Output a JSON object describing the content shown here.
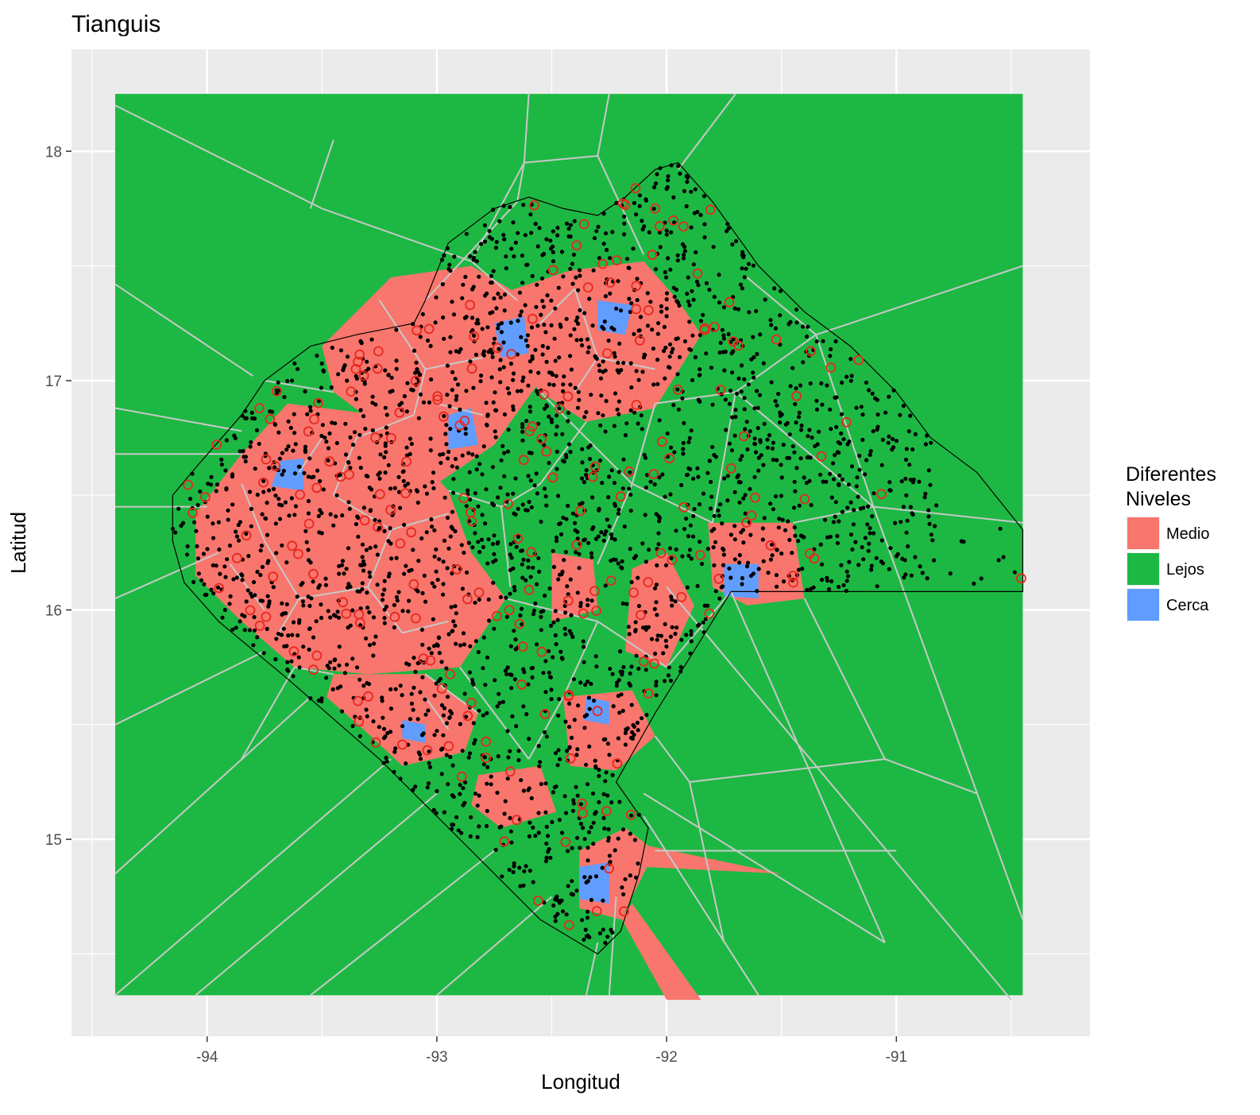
{
  "chart_data": {
    "type": "voronoi-map",
    "title": "Tianguis",
    "xlabel": "Longitud",
    "ylabel": "Latitud",
    "xlim": [
      -94.5,
      -90.2
    ],
    "ylim": [
      14.2,
      18.45
    ],
    "x_ticks": [
      -94,
      -93,
      -92,
      -91
    ],
    "y_ticks": [
      15,
      16,
      17,
      18
    ],
    "fill_extent": {
      "lon": [
        -94.4,
        -90.45
      ],
      "lat": [
        14.32,
        18.25
      ]
    },
    "legend": {
      "title_lines": [
        "Diferentes",
        "Niveles"
      ],
      "placement": "right",
      "entries": [
        {
          "label": "Medio",
          "color": "#F8766D"
        },
        {
          "label": "Lejos",
          "color": "#1DB843"
        },
        {
          "label": "Cerca",
          "color": "#619CFF"
        }
      ]
    },
    "background_color": "#1DB843",
    "edge_color": "#C8C8C8",
    "medio_regions": [
      [
        [
          -93.5,
          17.15
        ],
        [
          -93.2,
          17.45
        ],
        [
          -92.85,
          17.5
        ],
        [
          -92.6,
          17.35
        ],
        [
          -92.55,
          17.0
        ],
        [
          -92.75,
          16.72
        ],
        [
          -93.0,
          16.55
        ],
        [
          -93.25,
          16.8
        ],
        [
          -93.45,
          16.95
        ]
      ],
      [
        [
          -92.72,
          17.38
        ],
        [
          -92.42,
          17.48
        ],
        [
          -92.1,
          17.52
        ],
        [
          -91.95,
          17.35
        ],
        [
          -91.85,
          17.2
        ],
        [
          -92.05,
          16.88
        ],
        [
          -92.35,
          16.82
        ],
        [
          -92.55,
          16.95
        ],
        [
          -92.68,
          17.12
        ]
      ],
      [
        [
          -93.65,
          16.9
        ],
        [
          -93.25,
          16.85
        ],
        [
          -92.95,
          16.52
        ],
        [
          -92.85,
          16.25
        ],
        [
          -92.7,
          16.05
        ],
        [
          -92.9,
          15.75
        ],
        [
          -93.3,
          15.72
        ],
        [
          -93.62,
          15.75
        ],
        [
          -93.85,
          15.95
        ],
        [
          -94.05,
          16.15
        ],
        [
          -94.05,
          16.42
        ],
        [
          -93.85,
          16.68
        ]
      ],
      [
        [
          -93.45,
          15.72
        ],
        [
          -93.05,
          15.72
        ],
        [
          -92.82,
          15.55
        ],
        [
          -92.88,
          15.38
        ],
        [
          -93.15,
          15.32
        ],
        [
          -93.32,
          15.48
        ],
        [
          -93.48,
          15.62
        ]
      ],
      [
        [
          -92.5,
          16.25
        ],
        [
          -92.32,
          16.22
        ],
        [
          -92.3,
          16.0
        ],
        [
          -92.5,
          15.95
        ]
      ],
      [
        [
          -92.15,
          16.18
        ],
        [
          -92.0,
          16.25
        ],
        [
          -91.88,
          16.02
        ],
        [
          -92.0,
          15.75
        ],
        [
          -92.18,
          15.82
        ]
      ],
      [
        [
          -91.82,
          16.38
        ],
        [
          -91.45,
          16.38
        ],
        [
          -91.4,
          16.05
        ],
        [
          -91.65,
          16.02
        ],
        [
          -91.8,
          16.1
        ]
      ],
      [
        [
          -92.45,
          15.62
        ],
        [
          -92.15,
          15.65
        ],
        [
          -92.05,
          15.45
        ],
        [
          -92.22,
          15.3
        ],
        [
          -92.42,
          15.32
        ]
      ],
      [
        [
          -92.82,
          15.28
        ],
        [
          -92.55,
          15.32
        ],
        [
          -92.48,
          15.12
        ],
        [
          -92.72,
          15.05
        ],
        [
          -92.85,
          15.15
        ]
      ],
      [
        [
          -92.38,
          14.95
        ],
        [
          -92.18,
          15.05
        ],
        [
          -92.05,
          14.95
        ],
        [
          -92.2,
          14.65
        ],
        [
          -92.38,
          14.7
        ]
      ],
      [
        [
          -92.12,
          14.98
        ],
        [
          -91.5,
          14.85
        ],
        [
          -92.1,
          14.88
        ]
      ],
      [
        [
          -92.15,
          14.72
        ],
        [
          -91.85,
          14.3
        ],
        [
          -92.0,
          14.3
        ],
        [
          -92.2,
          14.66
        ]
      ]
    ],
    "cerca_regions": [
      [
        [
          -92.75,
          17.25
        ],
        [
          -92.62,
          17.28
        ],
        [
          -92.6,
          17.12
        ],
        [
          -92.72,
          17.1
        ]
      ],
      [
        [
          -93.68,
          16.65
        ],
        [
          -93.58,
          16.66
        ],
        [
          -93.58,
          16.52
        ],
        [
          -93.72,
          16.54
        ]
      ],
      [
        [
          -92.95,
          16.85
        ],
        [
          -92.85,
          16.88
        ],
        [
          -92.82,
          16.72
        ],
        [
          -92.95,
          16.7
        ]
      ],
      [
        [
          -92.3,
          17.35
        ],
        [
          -92.15,
          17.33
        ],
        [
          -92.18,
          17.2
        ],
        [
          -92.3,
          17.22
        ]
      ],
      [
        [
          -91.75,
          16.2
        ],
        [
          -91.6,
          16.2
        ],
        [
          -91.6,
          16.05
        ],
        [
          -91.75,
          16.06
        ]
      ],
      [
        [
          -92.35,
          15.62
        ],
        [
          -92.25,
          15.6
        ],
        [
          -92.25,
          15.5
        ],
        [
          -92.36,
          15.52
        ]
      ],
      [
        [
          -93.15,
          15.52
        ],
        [
          -93.05,
          15.5
        ],
        [
          -93.05,
          15.42
        ],
        [
          -93.15,
          15.44
        ]
      ],
      [
        [
          -92.38,
          14.88
        ],
        [
          -92.25,
          14.9
        ],
        [
          -92.25,
          14.72
        ],
        [
          -92.38,
          14.74
        ]
      ]
    ],
    "boundary": [
      [
        -94.15,
        16.5
      ],
      [
        -94.05,
        16.62
      ],
      [
        -93.85,
        16.85
      ],
      [
        -93.75,
        17.0
      ],
      [
        -93.55,
        17.15
      ],
      [
        -93.35,
        17.2
      ],
      [
        -93.1,
        17.25
      ],
      [
        -93.05,
        17.35
      ],
      [
        -92.95,
        17.6
      ],
      [
        -92.75,
        17.75
      ],
      [
        -92.6,
        17.8
      ],
      [
        -92.45,
        17.75
      ],
      [
        -92.3,
        17.72
      ],
      [
        -92.18,
        17.8
      ],
      [
        -92.05,
        17.92
      ],
      [
        -91.95,
        17.95
      ],
      [
        -91.8,
        17.78
      ],
      [
        -91.6,
        17.5
      ],
      [
        -91.4,
        17.3
      ],
      [
        -91.2,
        17.15
      ],
      [
        -91.0,
        16.95
      ],
      [
        -90.85,
        16.75
      ],
      [
        -90.65,
        16.6
      ],
      [
        -90.45,
        16.35
      ],
      [
        -90.45,
        16.08
      ],
      [
        -91.72,
        16.08
      ],
      [
        -92.05,
        15.55
      ],
      [
        -92.22,
        15.25
      ],
      [
        -92.08,
        15.05
      ],
      [
        -92.12,
        14.85
      ],
      [
        -92.2,
        14.6
      ],
      [
        -92.3,
        14.5
      ],
      [
        -92.55,
        14.65
      ],
      [
        -92.85,
        14.95
      ],
      [
        -93.25,
        15.35
      ],
      [
        -93.65,
        15.7
      ],
      [
        -93.95,
        15.95
      ],
      [
        -94.1,
        16.12
      ],
      [
        -94.15,
        16.3
      ]
    ],
    "edges": [
      [
        [
          -94.4,
          16.05
        ],
        [
          -93.95,
          16.25
        ]
      ],
      [
        [
          -94.4,
          16.45
        ],
        [
          -94.0,
          16.45
        ]
      ],
      [
        [
          -94.4,
          16.88
        ],
        [
          -93.85,
          16.78
        ]
      ],
      [
        [
          -94.4,
          17.42
        ],
        [
          -93.8,
          17.02
        ]
      ],
      [
        [
          -94.4,
          18.2
        ],
        [
          -93.5,
          17.75
        ]
      ],
      [
        [
          -93.5,
          17.75
        ],
        [
          -92.85,
          17.52
        ]
      ],
      [
        [
          -92.85,
          17.52
        ],
        [
          -92.65,
          17.35
        ]
      ],
      [
        [
          -92.85,
          17.52
        ],
        [
          -92.62,
          17.95
        ]
      ],
      [
        [
          -92.62,
          17.95
        ],
        [
          -92.6,
          18.25
        ]
      ],
      [
        [
          -92.62,
          17.95
        ],
        [
          -92.3,
          17.98
        ]
      ],
      [
        [
          -92.3,
          17.98
        ],
        [
          -92.25,
          18.25
        ]
      ],
      [
        [
          -92.3,
          17.98
        ],
        [
          -92.1,
          17.55
        ]
      ],
      [
        [
          -91.95,
          17.92
        ],
        [
          -91.7,
          18.25
        ]
      ],
      [
        [
          -91.65,
          17.45
        ],
        [
          -91.35,
          17.2
        ]
      ],
      [
        [
          -91.35,
          17.2
        ],
        [
          -90.45,
          17.5
        ]
      ],
      [
        [
          -91.35,
          17.2
        ],
        [
          -91.1,
          16.45
        ]
      ],
      [
        [
          -91.1,
          16.45
        ],
        [
          -90.45,
          16.38
        ]
      ],
      [
        [
          -91.1,
          16.45
        ],
        [
          -90.45,
          14.65
        ]
      ],
      [
        [
          -91.72,
          16.08
        ],
        [
          -91.05,
          14.55
        ]
      ],
      [
        [
          -92.0,
          16.1
        ],
        [
          -90.5,
          14.3
        ]
      ],
      [
        [
          -92.1,
          15.2
        ],
        [
          -91.05,
          14.55
        ]
      ],
      [
        [
          -92.1,
          15.1
        ],
        [
          -91.6,
          14.32
        ]
      ],
      [
        [
          -92.22,
          14.75
        ],
        [
          -92.25,
          14.32
        ]
      ],
      [
        [
          -92.3,
          14.55
        ],
        [
          -92.35,
          14.32
        ]
      ],
      [
        [
          -92.5,
          14.75
        ],
        [
          -93.0,
          14.32
        ]
      ],
      [
        [
          -92.75,
          14.95
        ],
        [
          -93.55,
          14.32
        ]
      ],
      [
        [
          -93.0,
          15.2
        ],
        [
          -94.05,
          14.32
        ]
      ],
      [
        [
          -93.2,
          15.35
        ],
        [
          -94.4,
          14.32
        ]
      ],
      [
        [
          -93.55,
          15.62
        ],
        [
          -94.4,
          14.85
        ]
      ],
      [
        [
          -93.75,
          15.82
        ],
        [
          -94.4,
          15.5
        ]
      ],
      [
        [
          -93.55,
          17.75
        ],
        [
          -93.45,
          18.05
        ]
      ],
      [
        [
          -93.05,
          17.35
        ],
        [
          -92.65,
          17.78
        ]
      ],
      [
        [
          -92.65,
          17.78
        ],
        [
          -92.62,
          17.95
        ]
      ],
      [
        [
          -92.55,
          16.95
        ],
        [
          -92.15,
          16.55
        ]
      ],
      [
        [
          -92.15,
          16.55
        ],
        [
          -91.8,
          16.38
        ]
      ],
      [
        [
          -92.15,
          16.55
        ],
        [
          -92.3,
          16.2
        ]
      ],
      [
        [
          -92.15,
          16.55
        ],
        [
          -92.05,
          16.9
        ]
      ],
      [
        [
          -92.05,
          16.9
        ],
        [
          -91.7,
          16.95
        ]
      ],
      [
        [
          -91.7,
          16.95
        ],
        [
          -91.35,
          17.2
        ]
      ],
      [
        [
          -91.7,
          16.95
        ],
        [
          -91.1,
          16.45
        ]
      ],
      [
        [
          -91.7,
          16.95
        ],
        [
          -91.8,
          16.38
        ]
      ],
      [
        [
          -92.7,
          16.05
        ],
        [
          -92.3,
          15.95
        ]
      ],
      [
        [
          -92.3,
          15.95
        ],
        [
          -92.0,
          15.75
        ]
      ],
      [
        [
          -92.9,
          15.75
        ],
        [
          -92.6,
          15.35
        ]
      ],
      [
        [
          -92.6,
          15.35
        ],
        [
          -92.45,
          15.62
        ]
      ],
      [
        [
          -92.45,
          15.62
        ],
        [
          -92.3,
          15.95
        ]
      ],
      [
        [
          -92.0,
          15.75
        ],
        [
          -91.72,
          16.08
        ]
      ],
      [
        [
          -92.05,
          15.45
        ],
        [
          -91.9,
          15.25
        ]
      ],
      [
        [
          -91.9,
          15.25
        ],
        [
          -91.05,
          15.35
        ]
      ],
      [
        [
          -91.05,
          15.35
        ],
        [
          -90.65,
          15.2
        ]
      ],
      [
        [
          -93.62,
          15.75
        ],
        [
          -93.85,
          15.35
        ]
      ],
      [
        [
          -93.05,
          15.72
        ],
        [
          -92.82,
          15.55
        ]
      ],
      [
        [
          -93.45,
          15.72
        ],
        [
          -93.62,
          15.75
        ]
      ],
      [
        [
          -93.85,
          16.68
        ],
        [
          -94.4,
          16.68
        ]
      ],
      [
        [
          -93.45,
          16.95
        ],
        [
          -93.75,
          17.0
        ]
      ],
      [
        [
          -92.35,
          16.82
        ],
        [
          -92.55,
          16.55
        ]
      ],
      [
        [
          -92.55,
          16.55
        ],
        [
          -92.72,
          16.45
        ]
      ],
      [
        [
          -92.72,
          16.45
        ],
        [
          -92.95,
          16.52
        ]
      ],
      [
        [
          -92.72,
          16.45
        ],
        [
          -92.68,
          16.1
        ]
      ],
      [
        [
          -91.45,
          16.38
        ],
        [
          -91.1,
          16.45
        ]
      ],
      [
        [
          -91.4,
          16.05
        ],
        [
          -91.05,
          15.35
        ]
      ],
      [
        [
          -91.9,
          15.25
        ],
        [
          -91.75,
          14.55
        ]
      ],
      [
        [
          -92.05,
          14.95
        ],
        [
          -91.0,
          14.95
        ]
      ]
    ],
    "cell_edges": [
      [
        [
          -93.25,
          17.35
        ],
        [
          -93.05,
          17.05
        ]
      ],
      [
        [
          -93.05,
          17.05
        ],
        [
          -92.8,
          17.1
        ]
      ],
      [
        [
          -93.05,
          17.05
        ],
        [
          -93.1,
          16.85
        ]
      ],
      [
        [
          -93.1,
          16.85
        ],
        [
          -93.35,
          16.75
        ]
      ],
      [
        [
          -93.35,
          16.75
        ],
        [
          -93.45,
          16.5
        ]
      ],
      [
        [
          -93.45,
          16.5
        ],
        [
          -93.2,
          16.35
        ]
      ],
      [
        [
          -93.2,
          16.35
        ],
        [
          -92.95,
          16.42
        ]
      ],
      [
        [
          -93.2,
          16.35
        ],
        [
          -93.3,
          16.1
        ]
      ],
      [
        [
          -93.3,
          16.1
        ],
        [
          -93.6,
          16.05
        ]
      ],
      [
        [
          -93.3,
          16.1
        ],
        [
          -93.15,
          15.9
        ]
      ],
      [
        [
          -93.15,
          15.9
        ],
        [
          -92.95,
          15.95
        ]
      ],
      [
        [
          -93.6,
          16.05
        ],
        [
          -93.75,
          16.3
        ]
      ],
      [
        [
          -93.75,
          16.3
        ],
        [
          -93.85,
          16.55
        ]
      ],
      [
        [
          -93.6,
          16.05
        ],
        [
          -93.7,
          15.88
        ]
      ],
      [
        [
          -92.4,
          17.4
        ],
        [
          -92.3,
          17.1
        ]
      ],
      [
        [
          -92.3,
          17.1
        ],
        [
          -92.05,
          17.05
        ]
      ],
      [
        [
          -92.3,
          17.1
        ],
        [
          -92.4,
          16.95
        ]
      ],
      [
        [
          -92.55,
          17.25
        ],
        [
          -92.4,
          17.4
        ]
      ],
      [
        [
          -93.0,
          16.9
        ],
        [
          -92.8,
          16.85
        ]
      ],
      [
        [
          -93.5,
          16.75
        ],
        [
          -93.6,
          16.6
        ]
      ],
      [
        [
          -93.9,
          16.2
        ],
        [
          -93.75,
          16.0
        ]
      ],
      [
        [
          -93.05,
          15.62
        ],
        [
          -92.95,
          15.48
        ]
      ]
    ]
  }
}
